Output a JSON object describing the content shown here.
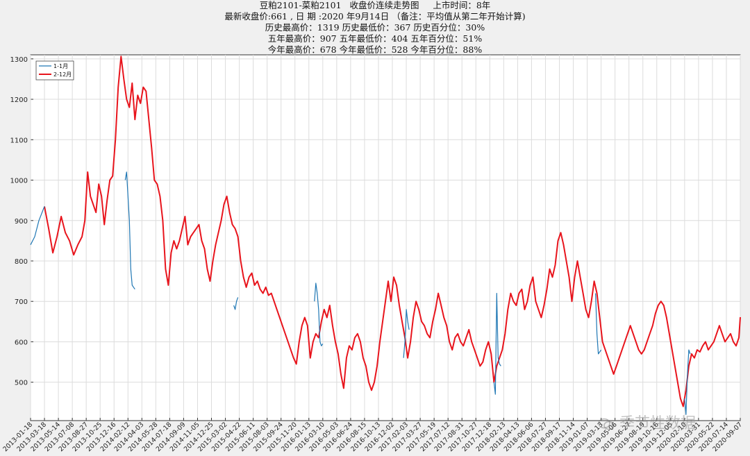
{
  "title_lines": [
    "豆粕2101-菜粕2101   收盘价连续走势图     上市时间：8年",
    "最新收盘价:661 , 日 期 :2020 年9月14日 （备注：平均值从第二年开始计算)",
    "历史最高价：1319 历史最低价：367 历史百分位：30%",
    "五年最高价：907 五年最低价：404 五年百分位：51%",
    "今年最高价：678 今年最低价：528 今年百分位：88%"
  ],
  "watermark": "季节性数据",
  "colors": {
    "series_jan": "#1f77b4",
    "series_main": "#e8141c",
    "grid": "#dcdcdc",
    "axis": "#333333"
  },
  "chart_data": {
    "type": "line",
    "title": "豆粕2101-菜粕2101   收盘价连续走势图",
    "ylim": [
      405,
      1310
    ],
    "yticks": [
      500,
      600,
      700,
      800,
      900,
      1000,
      1100,
      1200,
      1300
    ],
    "xticks": [
      "2013-01-18",
      "2013-03-18",
      "2013-05-14",
      "2013-07-08",
      "2013-08-27",
      "2013-10-25",
      "2013-12-16",
      "2014-02-12",
      "2014-04-03",
      "2014-05-28",
      "2014-07-18",
      "2014-09-09",
      "2014-11-05",
      "2014-12-25",
      "2015-03-02",
      "2015-04-22",
      "2015-06-11",
      "2015-08-03",
      "2015-09-24",
      "2015-11-20",
      "2016-01-13",
      "2016-03-10",
      "2016-05-03",
      "2016-06-24",
      "2016-08-15",
      "2016-10-13",
      "2016-12-02",
      "2017-02-03",
      "2017-03-27",
      "2017-05-19",
      "2017-07-12",
      "2017-08-31",
      "2017-10-27",
      "2017-12-18",
      "2018-02-13",
      "2018-04-13",
      "2018-06-06",
      "2018-07-27",
      "2018-09-17",
      "2018-11-14",
      "2019-01-07",
      "2019-03-13",
      "2019-05-06",
      "2019-06-27",
      "2019-08-19",
      "2019-10-16",
      "2019-12-05",
      "2020-02-10",
      "2020-03-31",
      "2020-05-22",
      "2020-07-14",
      "2020-09-07"
    ],
    "legend": {
      "position": "top-left",
      "entries": [
        "1-1月",
        "2-12月"
      ]
    },
    "grid": true,
    "series": [
      {
        "name": "1-1月",
        "segments": [
          [
            [
              0,
              840
            ],
            [
              0.3,
              860
            ],
            [
              0.6,
              900
            ],
            [
              1.0,
              935
            ]
          ],
          [
            [
              6.8,
              1000
            ],
            [
              6.9,
              1020
            ],
            [
              7.0,
              960
            ],
            [
              7.1,
              900
            ],
            [
              7.2,
              780
            ],
            [
              7.3,
              740
            ],
            [
              7.4,
              735
            ],
            [
              7.5,
              730
            ]
          ],
          [
            [
              14.6,
              690
            ],
            [
              14.7,
              680
            ],
            [
              14.8,
              700
            ],
            [
              14.9,
              710
            ]
          ],
          [
            [
              20.4,
              700
            ],
            [
              20.5,
              745
            ],
            [
              20.6,
              720
            ],
            [
              20.7,
              680
            ],
            [
              20.8,
              600
            ],
            [
              20.9,
              590
            ],
            [
              21.0,
              595
            ]
          ],
          [
            [
              26.8,
              560
            ],
            [
              26.9,
              600
            ],
            [
              27.0,
              680
            ],
            [
              27.1,
              650
            ],
            [
              27.2,
              630
            ]
          ],
          [
            [
              33.3,
              500
            ],
            [
              33.4,
              470
            ],
            [
              33.5,
              720
            ],
            [
              33.6,
              560
            ],
            [
              33.7,
              545
            ],
            [
              33.8,
              540
            ]
          ],
          [
            [
              40.6,
              720
            ],
            [
              40.7,
              620
            ],
            [
              40.8,
              570
            ],
            [
              40.9,
              575
            ],
            [
              41.0,
              580
            ]
          ],
          [
            [
              47.0,
              460
            ],
            [
              47.1,
              420
            ],
            [
              47.2,
              520
            ],
            [
              47.3,
              580
            ],
            [
              47.4,
              570
            ]
          ]
        ]
      },
      {
        "name": "2-12月",
        "points": [
          [
            1.0,
            935
          ],
          [
            1.3,
            880
          ],
          [
            1.6,
            820
          ],
          [
            1.9,
            860
          ],
          [
            2.2,
            910
          ],
          [
            2.5,
            870
          ],
          [
            2.8,
            850
          ],
          [
            3.1,
            815
          ],
          [
            3.4,
            840
          ],
          [
            3.7,
            860
          ],
          [
            3.9,
            900
          ],
          [
            4.1,
            1020
          ],
          [
            4.3,
            960
          ],
          [
            4.5,
            940
          ],
          [
            4.7,
            920
          ],
          [
            4.9,
            990
          ],
          [
            5.1,
            960
          ],
          [
            5.3,
            890
          ],
          [
            5.5,
            950
          ],
          [
            5.7,
            1000
          ],
          [
            5.9,
            1010
          ],
          [
            6.1,
            1100
          ],
          [
            6.3,
            1230
          ],
          [
            6.5,
            1306
          ],
          [
            6.7,
            1250
          ],
          [
            6.9,
            1200
          ],
          [
            7.1,
            1180
          ],
          [
            7.3,
            1240
          ],
          [
            7.5,
            1150
          ],
          [
            7.7,
            1210
          ],
          [
            7.9,
            1190
          ],
          [
            8.1,
            1230
          ],
          [
            8.3,
            1220
          ],
          [
            8.5,
            1150
          ],
          [
            8.7,
            1080
          ],
          [
            8.9,
            1000
          ],
          [
            9.1,
            990
          ],
          [
            9.3,
            960
          ],
          [
            9.5,
            900
          ],
          [
            9.7,
            780
          ],
          [
            9.9,
            740
          ],
          [
            10.1,
            820
          ],
          [
            10.3,
            850
          ],
          [
            10.5,
            830
          ],
          [
            10.7,
            850
          ],
          [
            10.9,
            880
          ],
          [
            11.1,
            910
          ],
          [
            11.3,
            840
          ],
          [
            11.5,
            860
          ],
          [
            11.7,
            870
          ],
          [
            11.9,
            880
          ],
          [
            12.1,
            890
          ],
          [
            12.3,
            850
          ],
          [
            12.5,
            830
          ],
          [
            12.7,
            780
          ],
          [
            12.9,
            750
          ],
          [
            13.1,
            800
          ],
          [
            13.3,
            840
          ],
          [
            13.5,
            870
          ],
          [
            13.7,
            900
          ],
          [
            13.9,
            940
          ],
          [
            14.1,
            960
          ],
          [
            14.3,
            920
          ],
          [
            14.5,
            890
          ],
          [
            14.7,
            880
          ],
          [
            14.9,
            860
          ],
          [
            15.1,
            800
          ],
          [
            15.3,
            760
          ],
          [
            15.5,
            735
          ],
          [
            15.7,
            760
          ],
          [
            15.9,
            770
          ],
          [
            16.1,
            740
          ],
          [
            16.3,
            750
          ],
          [
            16.5,
            730
          ],
          [
            16.7,
            720
          ],
          [
            16.9,
            735
          ],
          [
            17.1,
            715
          ],
          [
            17.3,
            720
          ],
          [
            17.5,
            700
          ],
          [
            17.7,
            680
          ],
          [
            17.9,
            660
          ],
          [
            18.1,
            640
          ],
          [
            18.3,
            620
          ],
          [
            18.5,
            600
          ],
          [
            18.7,
            580
          ],
          [
            18.9,
            560
          ],
          [
            19.1,
            545
          ],
          [
            19.3,
            600
          ],
          [
            19.5,
            640
          ],
          [
            19.7,
            660
          ],
          [
            19.9,
            640
          ],
          [
            20.1,
            560
          ],
          [
            20.3,
            600
          ],
          [
            20.5,
            620
          ],
          [
            20.7,
            610
          ],
          [
            20.9,
            650
          ],
          [
            21.1,
            680
          ],
          [
            21.3,
            660
          ],
          [
            21.5,
            690
          ],
          [
            21.7,
            640
          ],
          [
            21.9,
            600
          ],
          [
            22.1,
            570
          ],
          [
            22.3,
            520
          ],
          [
            22.5,
            485
          ],
          [
            22.7,
            560
          ],
          [
            22.9,
            590
          ],
          [
            23.1,
            580
          ],
          [
            23.3,
            610
          ],
          [
            23.5,
            620
          ],
          [
            23.7,
            600
          ],
          [
            23.9,
            560
          ],
          [
            24.1,
            540
          ],
          [
            24.3,
            500
          ],
          [
            24.5,
            480
          ],
          [
            24.7,
            500
          ],
          [
            24.9,
            540
          ],
          [
            25.1,
            600
          ],
          [
            25.3,
            650
          ],
          [
            25.5,
            700
          ],
          [
            25.7,
            750
          ],
          [
            25.9,
            700
          ],
          [
            26.1,
            760
          ],
          [
            26.3,
            740
          ],
          [
            26.5,
            690
          ],
          [
            26.7,
            650
          ],
          [
            26.9,
            610
          ],
          [
            27.1,
            560
          ],
          [
            27.3,
            600
          ],
          [
            27.5,
            660
          ],
          [
            27.7,
            700
          ],
          [
            27.9,
            680
          ],
          [
            28.1,
            650
          ],
          [
            28.3,
            640
          ],
          [
            28.5,
            620
          ],
          [
            28.7,
            610
          ],
          [
            28.9,
            650
          ],
          [
            29.1,
            680
          ],
          [
            29.3,
            720
          ],
          [
            29.5,
            690
          ],
          [
            29.7,
            660
          ],
          [
            29.9,
            640
          ],
          [
            30.1,
            600
          ],
          [
            30.3,
            580
          ],
          [
            30.5,
            610
          ],
          [
            30.7,
            620
          ],
          [
            30.9,
            600
          ],
          [
            31.1,
            590
          ],
          [
            31.3,
            610
          ],
          [
            31.5,
            630
          ],
          [
            31.7,
            600
          ],
          [
            31.9,
            580
          ],
          [
            32.1,
            560
          ],
          [
            32.3,
            540
          ],
          [
            32.5,
            550
          ],
          [
            32.7,
            580
          ],
          [
            32.9,
            600
          ],
          [
            33.1,
            570
          ],
          [
            33.3,
            500
          ],
          [
            33.5,
            540
          ],
          [
            33.7,
            560
          ],
          [
            33.9,
            580
          ],
          [
            34.1,
            620
          ],
          [
            34.3,
            680
          ],
          [
            34.5,
            720
          ],
          [
            34.7,
            700
          ],
          [
            34.9,
            690
          ],
          [
            35.1,
            720
          ],
          [
            35.3,
            730
          ],
          [
            35.5,
            680
          ],
          [
            35.7,
            700
          ],
          [
            35.9,
            740
          ],
          [
            36.1,
            760
          ],
          [
            36.3,
            700
          ],
          [
            36.5,
            680
          ],
          [
            36.7,
            660
          ],
          [
            36.9,
            690
          ],
          [
            37.1,
            730
          ],
          [
            37.3,
            780
          ],
          [
            37.5,
            760
          ],
          [
            37.7,
            790
          ],
          [
            37.9,
            850
          ],
          [
            38.1,
            870
          ],
          [
            38.3,
            840
          ],
          [
            38.5,
            800
          ],
          [
            38.7,
            760
          ],
          [
            38.9,
            700
          ],
          [
            39.1,
            760
          ],
          [
            39.3,
            800
          ],
          [
            39.5,
            760
          ],
          [
            39.7,
            720
          ],
          [
            39.9,
            680
          ],
          [
            40.1,
            660
          ],
          [
            40.3,
            700
          ],
          [
            40.5,
            750
          ],
          [
            40.7,
            720
          ],
          [
            40.9,
            660
          ],
          [
            41.1,
            600
          ],
          [
            41.3,
            580
          ],
          [
            41.5,
            560
          ],
          [
            41.7,
            540
          ],
          [
            41.9,
            520
          ],
          [
            42.1,
            540
          ],
          [
            42.3,
            560
          ],
          [
            42.5,
            580
          ],
          [
            42.7,
            600
          ],
          [
            42.9,
            620
          ],
          [
            43.1,
            640
          ],
          [
            43.3,
            620
          ],
          [
            43.5,
            600
          ],
          [
            43.7,
            580
          ],
          [
            43.9,
            570
          ],
          [
            44.1,
            580
          ],
          [
            44.3,
            600
          ],
          [
            44.5,
            620
          ],
          [
            44.7,
            640
          ],
          [
            44.9,
            670
          ],
          [
            45.1,
            690
          ],
          [
            45.3,
            700
          ],
          [
            45.5,
            690
          ],
          [
            45.7,
            660
          ],
          [
            45.9,
            620
          ],
          [
            46.1,
            580
          ],
          [
            46.3,
            540
          ],
          [
            46.5,
            500
          ],
          [
            46.7,
            460
          ],
          [
            46.9,
            440
          ],
          [
            47.1,
            480
          ],
          [
            47.3,
            540
          ],
          [
            47.5,
            570
          ],
          [
            47.7,
            560
          ],
          [
            47.9,
            580
          ],
          [
            48.1,
            575
          ],
          [
            48.3,
            590
          ],
          [
            48.5,
            600
          ],
          [
            48.7,
            580
          ],
          [
            48.9,
            590
          ],
          [
            49.1,
            600
          ],
          [
            49.3,
            620
          ],
          [
            49.5,
            640
          ],
          [
            49.7,
            620
          ],
          [
            49.9,
            600
          ],
          [
            50.1,
            610
          ],
          [
            50.3,
            620
          ],
          [
            50.5,
            600
          ],
          [
            50.7,
            590
          ],
          [
            50.9,
            610
          ],
          [
            51.0,
            661
          ]
        ]
      }
    ]
  }
}
